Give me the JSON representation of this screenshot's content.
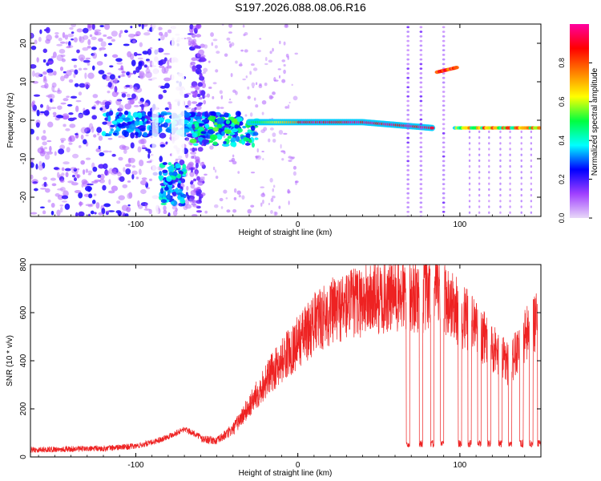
{
  "title": "S197.2026.088.08.06.R16",
  "chart_data": [
    {
      "type": "heatmap",
      "xlabel": "Height of straight line (km)",
      "ylabel": "Frequency (Hz)",
      "xlim": [
        -165,
        150
      ],
      "ylim": [
        -25,
        25
      ],
      "xticks": [
        -100,
        0,
        100
      ],
      "yticks": [
        -20,
        -10,
        0,
        10,
        20
      ],
      "colorbar": {
        "label": "Normalized spectral amplitude",
        "range": [
          0.0,
          1.0
        ],
        "ticks": [
          0.0,
          0.2,
          0.4,
          0.6,
          0.8
        ],
        "colors": [
          "#e8d8f8",
          "#a040ff",
          "#0000ff",
          "#00ffff",
          "#00ff40",
          "#ffff00",
          "#ff8000",
          "#ff0000",
          "#ff00a0"
        ]
      },
      "features": [
        {
          "name": "main carrier trace",
          "x_range": [
            -30,
            85
          ],
          "frequency": -0.5,
          "peak_amplitude": 1.0
        },
        {
          "name": "upper tone",
          "x_range": [
            85,
            100
          ],
          "frequency": 12.5,
          "peak_amplitude": 0.9
        },
        {
          "name": "lower branch",
          "x_range": [
            -85,
            -70
          ],
          "frequency": -15,
          "peak_amplitude": 0.45
        },
        {
          "name": "residual carrier",
          "x_range": [
            97,
            150
          ],
          "frequency": -2,
          "peak_amplitude": 0.85
        }
      ]
    },
    {
      "type": "line",
      "xlabel": "Height of straight line (km)",
      "ylabel": "SNR (10 * v/v)",
      "xlim": [
        -165,
        150
      ],
      "ylim": [
        0,
        800
      ],
      "xticks": [
        -100,
        0,
        100
      ],
      "yticks": [
        0,
        200,
        400,
        600,
        800
      ],
      "color": "#ee2222",
      "series": [
        {
          "name": "SNR envelope",
          "x": [
            -165,
            -120,
            -100,
            -90,
            -80,
            -70,
            -60,
            -50,
            -40,
            -30,
            -20,
            -10,
            0,
            10,
            20,
            30,
            40,
            50,
            60,
            70,
            80,
            90,
            100,
            110,
            120,
            130,
            140,
            150
          ],
          "values": [
            25,
            30,
            40,
            55,
            80,
            110,
            80,
            70,
            120,
            220,
            330,
            420,
            500,
            580,
            630,
            660,
            680,
            690,
            700,
            700,
            700,
            700,
            620,
            560,
            480,
            400,
            520,
            600
          ]
        }
      ],
      "dropouts_x": [
        68,
        76,
        83,
        89,
        100,
        106,
        112,
        118,
        125,
        131,
        138,
        144,
        149
      ]
    }
  ]
}
